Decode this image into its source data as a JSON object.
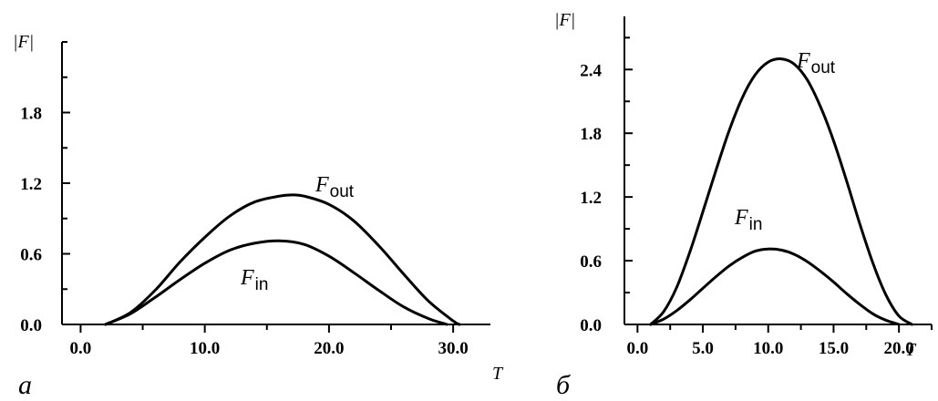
{
  "chart_data": [
    {
      "type": "line",
      "panel_label": "а",
      "xlabel": "T",
      "ylabel": "|F|",
      "xlim": [
        -1.5,
        33
      ],
      "ylim": [
        0,
        2.4
      ],
      "x_ticks": [
        0,
        10,
        20,
        30
      ],
      "x_tick_labels": [
        "0.0",
        "10.0",
        "20.0",
        "30.0"
      ],
      "y_ticks": [
        0,
        0.6,
        1.2,
        1.8
      ],
      "y_tick_labels": [
        "0.0",
        "0.6",
        "1.2",
        "1.8"
      ],
      "grid": false,
      "series": [
        {
          "name": "F_out",
          "label_main": "F",
          "label_sub": "out",
          "x": [
            2,
            4,
            6,
            8,
            10,
            12,
            14,
            16,
            17,
            18,
            20,
            22,
            24,
            26,
            28,
            30,
            30.5
          ],
          "y": [
            0,
            0.1,
            0.29,
            0.53,
            0.74,
            0.92,
            1.04,
            1.09,
            1.1,
            1.09,
            1.02,
            0.88,
            0.67,
            0.43,
            0.2,
            0.03,
            0
          ]
        },
        {
          "name": "F_in",
          "label_main": "F",
          "label_sub": "in",
          "x": [
            2,
            4,
            6,
            8,
            10,
            12,
            14,
            16,
            18,
            20,
            22,
            24,
            26,
            28,
            29.5
          ],
          "y": [
            0,
            0.09,
            0.23,
            0.38,
            0.52,
            0.63,
            0.69,
            0.71,
            0.68,
            0.58,
            0.44,
            0.29,
            0.15,
            0.05,
            0
          ]
        }
      ]
    },
    {
      "type": "line",
      "panel_label": "б",
      "xlabel": "T",
      "ylabel": "|F|",
      "xlim": [
        -1,
        22.5
      ],
      "ylim": [
        0,
        2.9
      ],
      "x_ticks": [
        0,
        5,
        10,
        15,
        20
      ],
      "x_tick_labels": [
        "0.0",
        "5.0",
        "10.0",
        "15.0",
        "20.0"
      ],
      "y_ticks": [
        0,
        0.6,
        1.2,
        1.8,
        2.4
      ],
      "y_tick_labels": [
        "0.0",
        "0.6",
        "1.2",
        "1.8",
        "2.4"
      ],
      "grid": false,
      "series": [
        {
          "name": "F_out",
          "label_main": "F",
          "label_sub": "out",
          "x": [
            1,
            2,
            3,
            4,
            5,
            6,
            7,
            8,
            9,
            10,
            11,
            12,
            13,
            14,
            15,
            16,
            17,
            18,
            19,
            20,
            21
          ],
          "y": [
            0,
            0.12,
            0.35,
            0.68,
            1.06,
            1.45,
            1.82,
            2.13,
            2.35,
            2.47,
            2.5,
            2.45,
            2.3,
            2.05,
            1.73,
            1.35,
            0.95,
            0.58,
            0.28,
            0.08,
            0
          ]
        },
        {
          "name": "F_in",
          "label_main": "F",
          "label_sub": "in",
          "x": [
            1,
            2,
            3,
            4,
            5,
            6,
            7,
            8,
            9,
            10,
            11,
            12,
            13,
            14,
            15,
            16,
            17,
            18,
            19,
            20
          ],
          "y": [
            0,
            0.05,
            0.13,
            0.23,
            0.34,
            0.45,
            0.55,
            0.63,
            0.69,
            0.71,
            0.7,
            0.66,
            0.59,
            0.5,
            0.4,
            0.29,
            0.19,
            0.1,
            0.04,
            0
          ]
        }
      ]
    }
  ]
}
